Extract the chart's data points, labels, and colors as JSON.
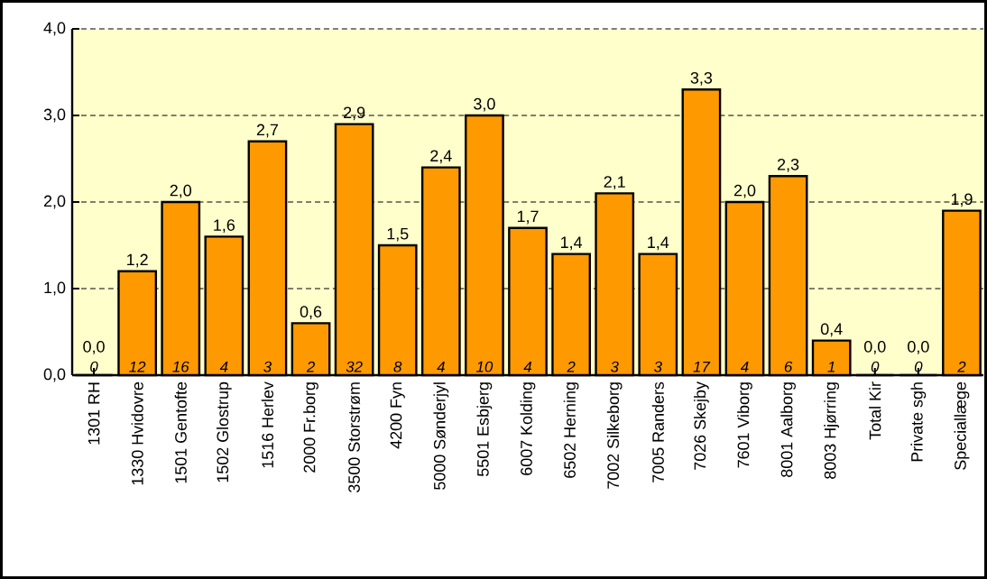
{
  "chart_data": {
    "type": "bar",
    "categories": [
      "1301 RH",
      "1330 Hvidovre",
      "1501 Gentofte",
      "1502 Glostrup",
      "1516 Herlev",
      "2000 Fr.borg",
      "3500 Storstrøm",
      "4200 Fyn",
      "5000 Sønderjyl",
      "5501 Esbjerg",
      "6007 Kolding",
      "6502 Herning",
      "7002 Silkeborg",
      "7005 Randers",
      "7026 Skejby",
      "7601 Viborg",
      "8001 Aalborg",
      "8003 Hjørring",
      "Total Kir",
      "Private sgh",
      "Speciallæge"
    ],
    "values": [
      0.0,
      1.2,
      2.0,
      1.6,
      2.7,
      0.6,
      2.9,
      1.5,
      2.4,
      3.0,
      1.7,
      1.4,
      2.1,
      1.4,
      3.3,
      2.0,
      2.3,
      0.4,
      0.0,
      0.0,
      1.9
    ],
    "value_labels": [
      "0,0",
      "1,2",
      "2,0",
      "1,6",
      "2,7",
      "0,6",
      "2,9",
      "1,5",
      "2,4",
      "3,0",
      "1,7",
      "1,4",
      "2,1",
      "1,4",
      "3,3",
      "2,0",
      "2,3",
      "0,4",
      "0,0",
      "0,0",
      "1,9"
    ],
    "annotations": [
      "0",
      "12",
      "16",
      "4",
      "3",
      "2",
      "32",
      "8",
      "4",
      "10",
      "4",
      "2",
      "3",
      "3",
      "17",
      "4",
      "6",
      "1",
      "0",
      "0",
      "2"
    ],
    "color": "#ff9900",
    "ylim": [
      0,
      4
    ],
    "yticks": [
      {
        "value": 0,
        "label": "0,0"
      },
      {
        "value": 1,
        "label": "1,0"
      },
      {
        "value": 2,
        "label": "2,0"
      },
      {
        "value": 3,
        "label": "3,0"
      },
      {
        "value": 4,
        "label": "4,0"
      }
    ],
    "grid": "y"
  }
}
